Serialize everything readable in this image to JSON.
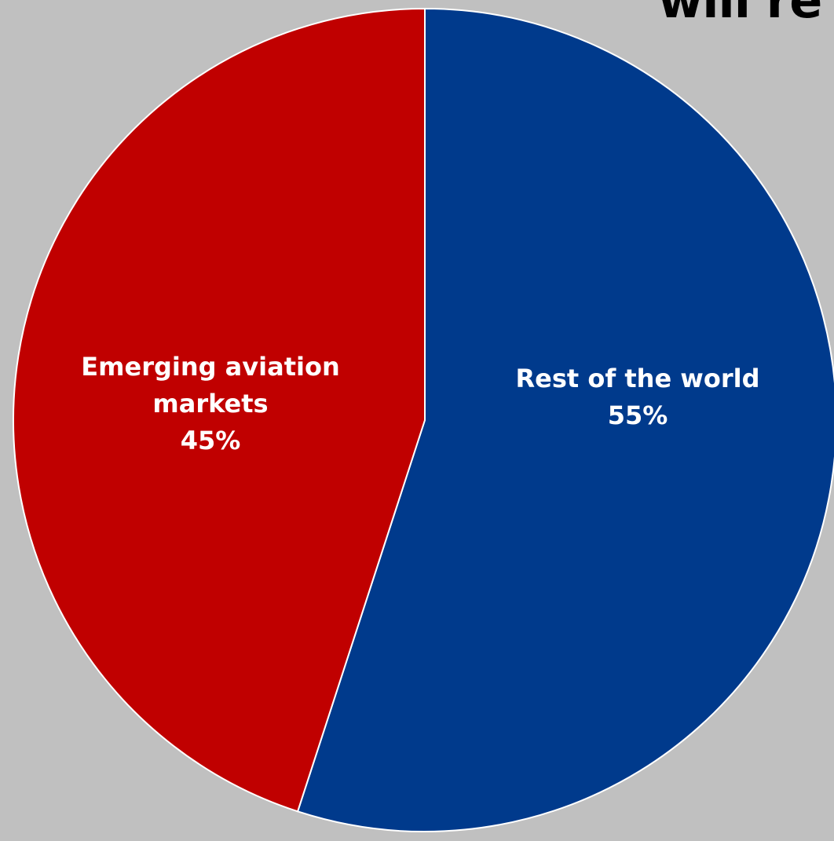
{
  "title_fragment": "will re",
  "chart_data": {
    "type": "pie",
    "start_angle_deg": 90,
    "direction": "clockwise",
    "slices": [
      {
        "label_lines": [
          "Rest of the world"
        ],
        "value": 55,
        "value_label": "55%",
        "color": "#003a8c"
      },
      {
        "label_lines": [
          "Emerging aviation",
          "markets"
        ],
        "value": 45,
        "value_label": "45%",
        "color": "#c00000"
      }
    ]
  }
}
